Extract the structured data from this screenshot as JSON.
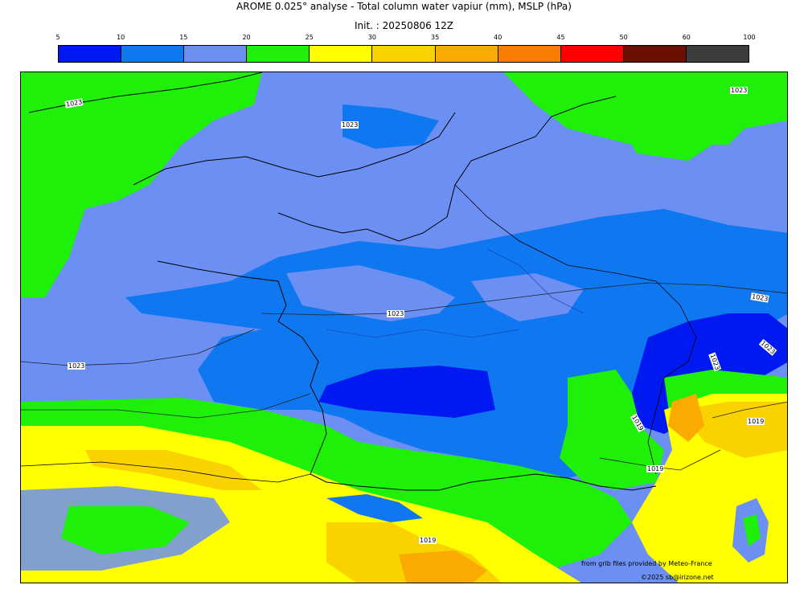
{
  "header": {
    "title": "AROME 0.025° analyse - Total column water vapiur (mm), MSLP (hPa)",
    "init": "Init. : 20250806 12Z"
  },
  "legend": {
    "ticks": [
      "5",
      "10",
      "15",
      "20",
      "25",
      "30",
      "35",
      "40",
      "45",
      "50",
      "60",
      "100"
    ],
    "colors": [
      "#0019f0",
      "#0f78f0",
      "#6b8ff2",
      "#1ef00a",
      "#ffff00",
      "#fad200",
      "#faaa00",
      "#fa7d00",
      "#ff0000",
      "#6b0f00",
      "#3c3c3c"
    ]
  },
  "isobars": [
    "1023",
    "1023",
    "1023",
    "1023",
    "1023",
    "1023",
    "1023",
    "1023",
    "1019",
    "1019",
    "1019",
    "1019"
  ],
  "credits": {
    "source": "from grib files provided by Meteo-France",
    "copyright": "©2025 sb@irizone.net"
  }
}
